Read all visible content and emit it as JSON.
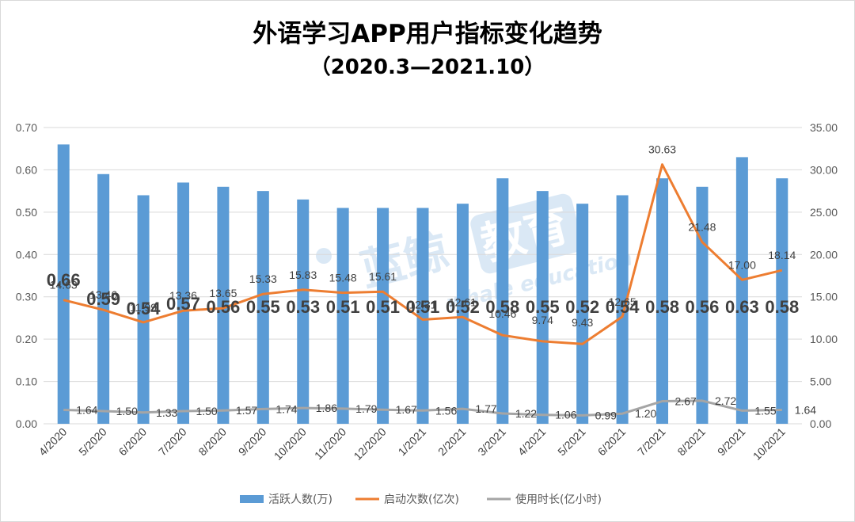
{
  "title": "外语学习APP用户指标变化趋势",
  "subtitle": "（2020.3—2021.10）",
  "watermark": {
    "text_cn": "蓝鲸",
    "text_box": "教育",
    "text_en": "whale education"
  },
  "colors": {
    "bar": "#5b9bd5",
    "line_starts": "#ed7d31",
    "line_duration": "#a5a5a5",
    "grid": "#d9d9d9",
    "watermark": "#5b9bd5"
  },
  "chart_data": {
    "type": "bar",
    "categories": [
      "4/2020",
      "5/2020",
      "6/2020",
      "7/2020",
      "8/2020",
      "9/2020",
      "10/2020",
      "11/2020",
      "12/2020",
      "1/2021",
      "2/2021",
      "3/2021",
      "4/2021",
      "5/2021",
      "6/2021",
      "7/2021",
      "8/2021",
      "9/2021",
      "10/2021"
    ],
    "y_left": {
      "ticks": [
        "0.00",
        "0.10",
        "0.20",
        "0.30",
        "0.40",
        "0.50",
        "0.60",
        "0.70"
      ],
      "ylim": [
        0,
        0.7
      ]
    },
    "y_right": {
      "ticks": [
        "0.00",
        "5.00",
        "10.00",
        "15.00",
        "20.00",
        "25.00",
        "30.00",
        "35.00"
      ],
      "ylim": [
        0,
        35
      ]
    },
    "grid": true,
    "legend_position": "bottom",
    "series": [
      {
        "name": "活跃人数(万)",
        "type": "bar",
        "axis": "left",
        "values": [
          0.66,
          0.59,
          0.54,
          0.57,
          0.56,
          0.55,
          0.53,
          0.51,
          0.51,
          0.51,
          0.52,
          0.58,
          0.55,
          0.52,
          0.54,
          0.58,
          0.56,
          0.63,
          0.58
        ],
        "labels": [
          "0.66",
          "0.59",
          "0.54",
          "0.57",
          "0.56",
          "0.55",
          "0.53",
          "0.51",
          "0.51",
          "0.51",
          "0.52",
          "0.58",
          "0.55",
          "0.52",
          "0.54",
          "0.58",
          "0.56",
          "0.63",
          "0.58"
        ]
      },
      {
        "name": "启动次数(亿次)",
        "type": "line",
        "axis": "right",
        "values": [
          14.63,
          13.46,
          11.99,
          13.36,
          13.65,
          15.33,
          15.83,
          15.48,
          15.61,
          12.31,
          12.61,
          10.46,
          9.74,
          9.43,
          12.65,
          30.63,
          21.48,
          17.0,
          18.14
        ],
        "labels": [
          "14.63",
          "13.46",
          "11.99",
          "13.36",
          "13.65",
          "15.33",
          "15.83",
          "15.48",
          "15.61",
          "12.31",
          "12.61",
          "10.46",
          "9.74",
          "9.43",
          "12.65",
          "30.63",
          "21.48",
          "17.00",
          "18.14"
        ]
      },
      {
        "name": "使用时长(亿小时)",
        "type": "line",
        "axis": "right",
        "values": [
          1.64,
          1.5,
          1.33,
          1.5,
          1.57,
          1.74,
          1.86,
          1.79,
          1.67,
          1.56,
          1.77,
          1.22,
          1.06,
          0.99,
          1.2,
          2.67,
          2.72,
          1.55,
          1.64
        ],
        "labels": [
          "1.64",
          "1.50",
          "1.33",
          "1.50",
          "1.57",
          "1.74",
          "1.86",
          "1.79",
          "1.67",
          "1.56",
          "1.77",
          "1.22",
          "1.06",
          "0.99",
          "1.20",
          "2.67",
          "2.72",
          "1.55",
          "1.64"
        ]
      }
    ]
  }
}
